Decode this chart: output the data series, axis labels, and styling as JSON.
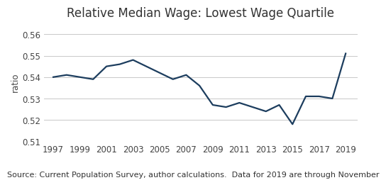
{
  "title": "Relative Median Wage: Lowest Wage Quartile",
  "source_text": "Source: Current Population Survey, author calculations.  Data for 2019 are through November",
  "ylabel": "ratio",
  "line_color": "#1c3d5e",
  "line_width": 1.6,
  "background_color": "#ffffff",
  "grid_color": "#c8c8c8",
  "years": [
    1997,
    1998,
    1999,
    2000,
    2001,
    2002,
    2003,
    2004,
    2005,
    2006,
    2007,
    2008,
    2009,
    2010,
    2011,
    2012,
    2013,
    2014,
    2015,
    2016,
    2017,
    2018,
    2019
  ],
  "values": [
    0.54,
    0.541,
    0.54,
    0.539,
    0.545,
    0.546,
    0.548,
    0.545,
    0.542,
    0.539,
    0.541,
    0.536,
    0.527,
    0.526,
    0.528,
    0.526,
    0.524,
    0.527,
    0.518,
    0.531,
    0.531,
    0.53,
    0.551
  ],
  "ylim": [
    0.51,
    0.5655
  ],
  "yticks": [
    0.51,
    0.52,
    0.53,
    0.54,
    0.55,
    0.56
  ],
  "xticks": [
    1997,
    1999,
    2001,
    2003,
    2005,
    2007,
    2009,
    2011,
    2013,
    2015,
    2017,
    2019
  ],
  "xlim": [
    1996.3,
    2019.9
  ],
  "title_fontsize": 12,
  "label_fontsize": 8.5,
  "tick_fontsize": 8.5,
  "source_fontsize": 8
}
